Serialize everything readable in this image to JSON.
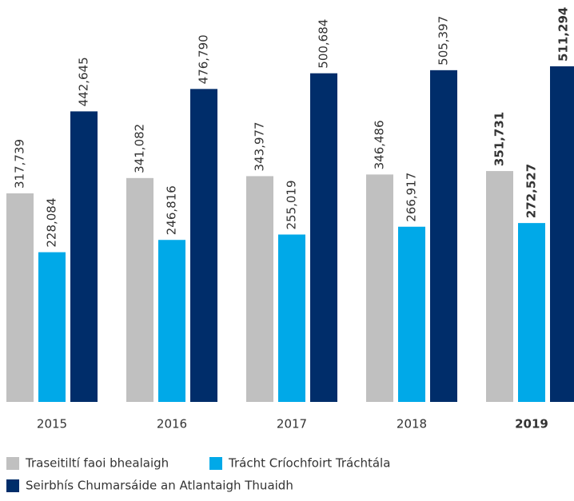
{
  "chart_data": {
    "type": "bar",
    "categories": [
      "2015",
      "2016",
      "2017",
      "2018",
      "2019"
    ],
    "series": [
      {
        "name": "Traseitiltí faoi bhealaigh",
        "color": "#c0c0c0",
        "values": [
          317739,
          341082,
          343977,
          346486,
          351731
        ],
        "value_labels": [
          "317,739",
          "341,082",
          "343,977",
          "346,486",
          "351,731"
        ]
      },
      {
        "name": "Trácht Críochfoirt Tráchtála",
        "color": "#00a9e8",
        "values": [
          228084,
          246816,
          255019,
          266917,
          272527
        ],
        "value_labels": [
          "228,084",
          "246,816",
          "255,019",
          "266,917",
          "272,527"
        ]
      },
      {
        "name": "Seirbhís Chumarsáide an Atlantaigh Thuaidh",
        "color": "#002d6a",
        "values": [
          442645,
          476790,
          500684,
          505397,
          511294
        ],
        "value_labels": [
          "442,645",
          "476,790",
          "500,684",
          "505,397",
          "511,294"
        ]
      }
    ]
  }
}
